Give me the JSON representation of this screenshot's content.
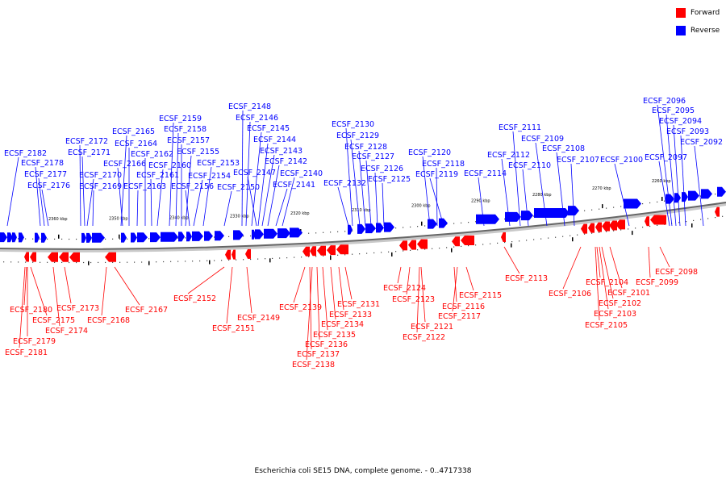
{
  "legend": {
    "forward": {
      "label": "Forward",
      "color": "#ff0000"
    },
    "reverse": {
      "label": "Reverse",
      "color": "#0000ff"
    }
  },
  "caption": "Escherichia coli SE15 DNA, complete genome. - 0..4717338",
  "ticks": [
    "2360 kbp",
    "2350 kbp",
    "2340 kbp",
    "2330 kbp",
    "2320 kbp",
    "2310 kbp",
    "2300 kbp",
    "2290 kbp",
    "2280 kbp",
    "2270 kbp",
    "2260 kbp"
  ],
  "reverse_genes": [
    "ECSF_2182",
    "ECSF_2178",
    "ECSF_2177",
    "ECSF_2176",
    "ECSF_2172",
    "ECSF_2171",
    "ECSF_2170",
    "ECSF_2169",
    "ECSF_2165",
    "ECSF_2164",
    "ECSF_2166",
    "ECSF_2163",
    "ECSF_2162",
    "ECSF_2161",
    "ECSF_2160",
    "ECSF_2159",
    "ECSF_2158",
    "ECSF_2157",
    "ECSF_2155",
    "ECSF_2156",
    "ECSF_2154",
    "ECSF_2153",
    "ECSF_2150",
    "ECSF_2148",
    "ECSF_2146",
    "ECSF_2145",
    "ECSF_2144",
    "ECSF_2147",
    "ECSF_2143",
    "ECSF_2142",
    "ECSF_2141",
    "ECSF_2140",
    "ECSF_2132",
    "ECSF_2130",
    "ECSF_2129",
    "ECSF_2128",
    "ECSF_2127",
    "ECSF_2126",
    "ECSF_2125",
    "ECSF_2120",
    "ECSF_2118",
    "ECSF_2119",
    "ECSF_2114",
    "ECSF_2112",
    "ECSF_2111",
    "ECSF_2110",
    "ECSF_2109",
    "ECSF_2108",
    "ECSF_2107",
    "ECSF_2100",
    "ECSF_2097",
    "ECSF_2096",
    "ECSF_2095",
    "ECSF_2094",
    "ECSF_2093",
    "ECSF_2092"
  ],
  "forward_genes": [
    "ECSF_2180",
    "ECSF_2175",
    "ECSF_2179",
    "ECSF_2181",
    "ECSF_2174",
    "ECSF_2173",
    "ECSF_2168",
    "ECSF_2167",
    "ECSF_2152",
    "ECSF_2151",
    "ECSF_2149",
    "ECSF_2139",
    "ECSF_2137",
    "ECSF_2138",
    "ECSF_2136",
    "ECSF_2135",
    "ECSF_2134",
    "ECSF_2133",
    "ECSF_2131",
    "ECSF_2124",
    "ECSF_2123",
    "ECSF_2121",
    "ECSF_2122",
    "ECSF_2116",
    "ECSF_2117",
    "ECSF_2115",
    "ECSF_2113",
    "ECSF_2106",
    "ECSF_2104",
    "ECSF_2102",
    "ECSF_2101",
    "ECSF_2103",
    "ECSF_2105",
    "ECSF_2099",
    "ECSF_2098"
  ]
}
